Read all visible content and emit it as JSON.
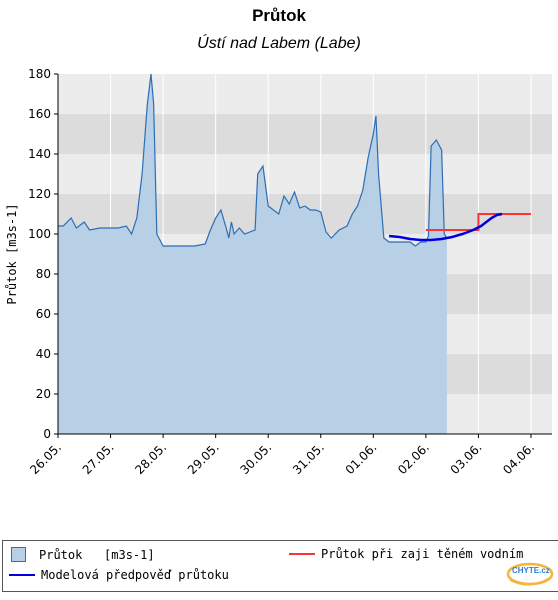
{
  "chart_data": {
    "type": "area",
    "title": "Průtok",
    "subtitle": "Ústí nad Labem (Labe)",
    "ylabel": "Průtok [m3s-1]",
    "xlabel": "",
    "ylim": [
      0,
      180
    ],
    "yticks": [
      0,
      20,
      40,
      60,
      80,
      100,
      120,
      140,
      160,
      180
    ],
    "xlim": [
      0,
      9.4
    ],
    "xtick_values": [
      0,
      1,
      2,
      3,
      4,
      5,
      6,
      7,
      8,
      9
    ],
    "xtick_labels": [
      "26.05.",
      "27.05.",
      "28.05.",
      "29.05.",
      "30.05.",
      "31.05.",
      "01.06.",
      "02.06.",
      "03.06.",
      "04.06."
    ],
    "grid": true,
    "legend_position": "bottom",
    "series": [
      {
        "name": "Průtok [m3s-1]",
        "style": "area",
        "color": "#2e6db5",
        "fill": "#b7d0e6",
        "points": [
          [
            0.0,
            104
          ],
          [
            0.1,
            104
          ],
          [
            0.25,
            108
          ],
          [
            0.35,
            103
          ],
          [
            0.5,
            106
          ],
          [
            0.6,
            102
          ],
          [
            0.8,
            103
          ],
          [
            1.0,
            103
          ],
          [
            1.15,
            103
          ],
          [
            1.3,
            104
          ],
          [
            1.4,
            100
          ],
          [
            1.5,
            108
          ],
          [
            1.6,
            130
          ],
          [
            1.7,
            165
          ],
          [
            1.77,
            180
          ],
          [
            1.82,
            165
          ],
          [
            1.88,
            100
          ],
          [
            2.0,
            94
          ],
          [
            2.3,
            94
          ],
          [
            2.6,
            94
          ],
          [
            2.8,
            95
          ],
          [
            2.9,
            102
          ],
          [
            3.0,
            108
          ],
          [
            3.1,
            112
          ],
          [
            3.2,
            103
          ],
          [
            3.25,
            98
          ],
          [
            3.3,
            106
          ],
          [
            3.35,
            100
          ],
          [
            3.45,
            103
          ],
          [
            3.55,
            100
          ],
          [
            3.65,
            101
          ],
          [
            3.75,
            102
          ],
          [
            3.8,
            130
          ],
          [
            3.9,
            134
          ],
          [
            4.0,
            114
          ],
          [
            4.1,
            112
          ],
          [
            4.2,
            110
          ],
          [
            4.3,
            119
          ],
          [
            4.4,
            115
          ],
          [
            4.5,
            121
          ],
          [
            4.6,
            113
          ],
          [
            4.7,
            114
          ],
          [
            4.8,
            112
          ],
          [
            4.9,
            112
          ],
          [
            5.0,
            111
          ],
          [
            5.1,
            101
          ],
          [
            5.2,
            98
          ],
          [
            5.35,
            102
          ],
          [
            5.5,
            104
          ],
          [
            5.6,
            110
          ],
          [
            5.7,
            114
          ],
          [
            5.8,
            122
          ],
          [
            5.9,
            138
          ],
          [
            6.0,
            150
          ],
          [
            6.05,
            159
          ],
          [
            6.1,
            130
          ],
          [
            6.2,
            98
          ],
          [
            6.3,
            96
          ],
          [
            6.5,
            96
          ],
          [
            6.7,
            96
          ],
          [
            6.8,
            94
          ],
          [
            6.9,
            96
          ],
          [
            7.0,
            96
          ],
          [
            7.05,
            99
          ],
          [
            7.1,
            144
          ],
          [
            7.2,
            147
          ],
          [
            7.3,
            142
          ],
          [
            7.35,
            100
          ],
          [
            7.4,
            98
          ]
        ]
      },
      {
        "name": "Modelová předpověď průtoku",
        "style": "line",
        "color": "#0000dd",
        "points": [
          [
            6.3,
            99
          ],
          [
            6.5,
            98.5
          ],
          [
            6.7,
            97.5
          ],
          [
            6.9,
            97
          ],
          [
            7.1,
            97
          ],
          [
            7.3,
            97.5
          ],
          [
            7.5,
            98.5
          ],
          [
            7.7,
            100
          ],
          [
            7.9,
            102
          ],
          [
            8.05,
            104
          ],
          [
            8.15,
            106
          ],
          [
            8.25,
            108
          ],
          [
            8.35,
            109.5
          ],
          [
            8.45,
            110
          ]
        ]
      },
      {
        "name": "Průtok při zaji těném vodním",
        "style": "step",
        "color": "#ff3333",
        "points": [
          [
            7.0,
            102
          ],
          [
            8.0,
            102
          ],
          [
            8.0,
            110
          ],
          [
            9.0,
            110
          ]
        ]
      }
    ],
    "legend": {
      "item_observed": "Průtok   [m3s-1]",
      "item_secured": "Průtok při zaji těném vodním",
      "item_forecast": "Modelová předpověď průtoku"
    },
    "forecast_shade_from": 7.4,
    "colors": {
      "band_light": "#ececec",
      "band_dark": "#dcdcdc",
      "observed_fill": "#b7d0e6",
      "observed_line": "#2e6db5",
      "forecast_line": "#0000dd",
      "secured_line": "#ff3333"
    }
  },
  "logo": {
    "text": "CHYTE.cz"
  }
}
